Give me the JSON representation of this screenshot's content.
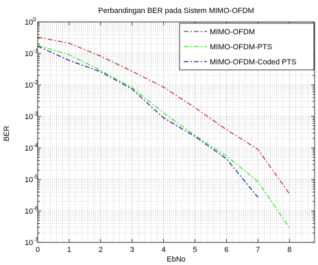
{
  "chart_data": {
    "type": "line",
    "title": "Perbandingan BER pada Sistem MIMO-OFDM",
    "xlabel": "EbNo",
    "ylabel": "BER",
    "xlim": [
      0,
      8.8
    ],
    "ylim": [
      1e-07,
      1
    ],
    "yscale": "log",
    "grid": true,
    "minor_grid": true,
    "legend_position": "top-right",
    "xticks": [
      0,
      1,
      2,
      3,
      4,
      5,
      6,
      7,
      8
    ],
    "xtick_labels": [
      "0",
      "1",
      "2",
      "3",
      "4",
      "5",
      "6",
      "7",
      "8"
    ],
    "yticks": [
      1,
      0.1,
      0.01,
      0.001,
      0.0001,
      1e-05,
      1e-06,
      1e-07
    ],
    "ytick_labels": [
      {
        "base": "10",
        "exp": "0"
      },
      {
        "base": "10",
        "exp": "-1"
      },
      {
        "base": "10",
        "exp": "-2"
      },
      {
        "base": "10",
        "exp": "-3"
      },
      {
        "base": "10",
        "exp": "-4"
      },
      {
        "base": "10",
        "exp": "-5"
      },
      {
        "base": "10",
        "exp": "-6"
      },
      {
        "base": "10",
        "exp": "-7"
      }
    ],
    "series": [
      {
        "name": "MIMO-OFDM",
        "color": "#c0282a",
        "line_style": "dash-dot",
        "x": [
          0,
          1,
          2,
          3,
          4,
          5,
          6,
          7,
          8
        ],
        "y": [
          0.33,
          0.21,
          0.082,
          0.027,
          0.0085,
          0.0019,
          0.00038,
          9e-05,
          3.5e-06
        ]
      },
      {
        "name": "MIMO-OFDM-PTS",
        "color": "#2fe02f",
        "line_style": "dash-dot",
        "x": [
          0,
          1,
          2,
          3,
          4,
          5,
          6,
          7,
          8
        ],
        "y": [
          0.18,
          0.091,
          0.029,
          0.0082,
          0.0013,
          0.00025,
          5.5e-05,
          8.6e-06,
          2.9e-07
        ]
      },
      {
        "name": "MIMO-OFDM-Coded PTS",
        "color": "#1c1c8a",
        "line_style": "dash-dot",
        "x": [
          0,
          1,
          2,
          3,
          4,
          5,
          6,
          7
        ],
        "y": [
          0.17,
          0.06,
          0.026,
          0.0074,
          0.0009,
          0.00023,
          4.5e-05,
          2.7e-06
        ]
      }
    ]
  }
}
